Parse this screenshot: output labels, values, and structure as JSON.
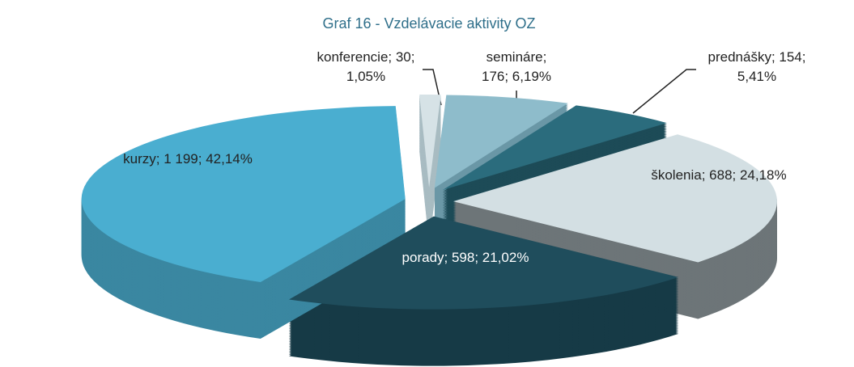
{
  "chart_data": {
    "type": "pie3d",
    "title": "Graf  16 - Vzdelávacie aktivity OZ",
    "categories": [
      "konferencie",
      "semináre",
      "prednášky",
      "školenia",
      "porady",
      "kurzy"
    ],
    "values": [
      30,
      176,
      154,
      688,
      598,
      1199
    ],
    "data_labels": [
      [
        "konferencie; 30;",
        "1,05%"
      ],
      [
        "semináre;",
        "176; 6,19%"
      ],
      [
        "prednášky; 154;",
        "5,41%"
      ],
      [
        "školenia; 688; 24,18%"
      ],
      [
        "porady; 598; 21,02%"
      ],
      [
        "kurzy; 1 199; 42,14%"
      ]
    ],
    "colors": [
      "#d6e2e6",
      "#8ebccb",
      "#2b6c7d",
      "#d3dfe3",
      "#1f4d5c",
      "#4aaed0"
    ],
    "side_colors": [
      "#a9bcc2",
      "#6a97a6",
      "#1d4b57",
      "#6d7578",
      "#163a46",
      "#3a87a1"
    ]
  }
}
